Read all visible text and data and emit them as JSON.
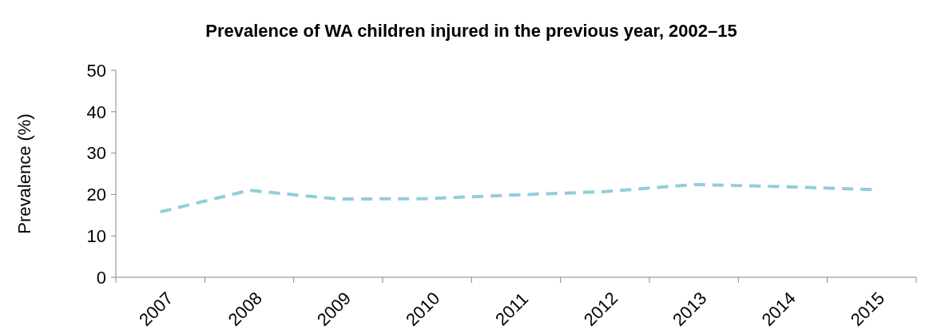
{
  "chart_data": {
    "type": "line",
    "title": "Prevalence of WA children injured in the previous year, 2002–15",
    "ylabel": "Prevalence (%)",
    "categories": [
      "2007",
      "2008",
      "2009",
      "2010",
      "2011",
      "2012",
      "2013",
      "2014",
      "2015"
    ],
    "series": [
      {
        "color": "#92cddc",
        "values": [
          15.8,
          21,
          18.9,
          19,
          19.9,
          20.7,
          22.4,
          21.9,
          21.2
        ]
      }
    ],
    "ylim": [
      0,
      50
    ],
    "yticks": [
      0,
      10,
      20,
      30,
      40,
      50
    ],
    "line_style": "dashed",
    "marker": "none",
    "grid": false
  }
}
